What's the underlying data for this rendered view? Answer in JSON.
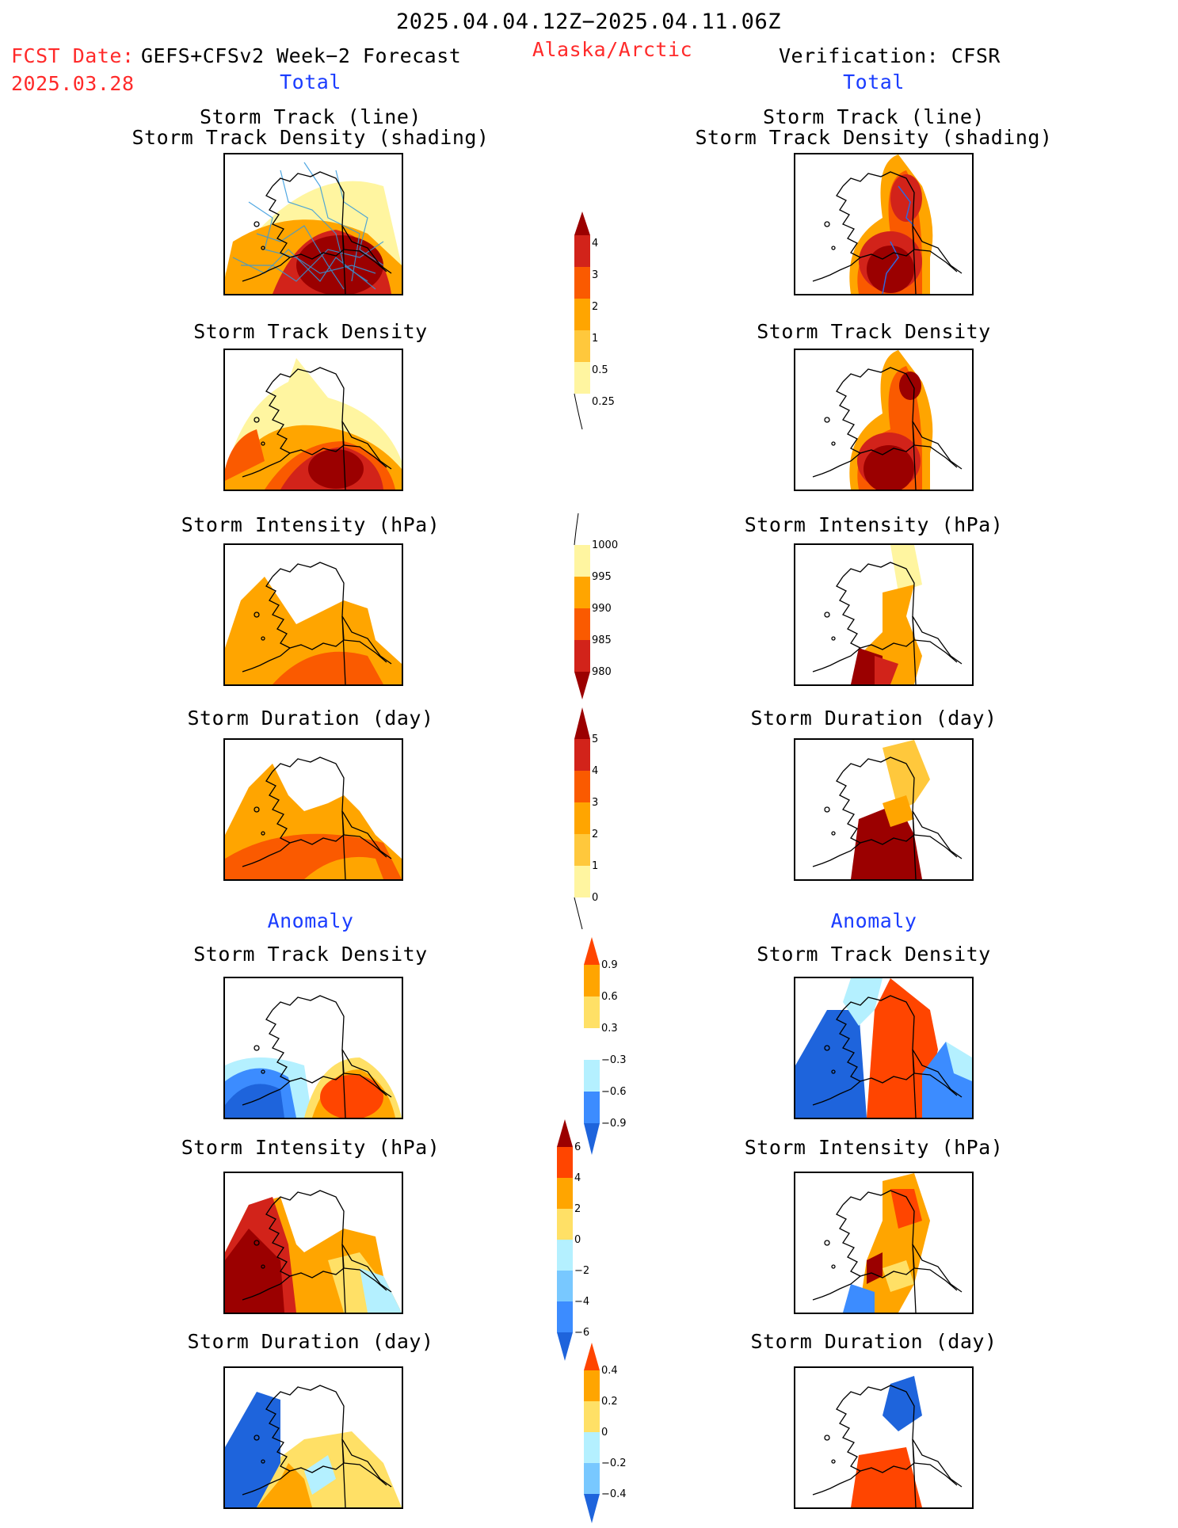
{
  "header": {
    "period": "2025.04.04.12Z−2025.04.11.06Z",
    "fcst_label": "FCST Date:",
    "fcst_model": "GEFS+CFSv2 Week−2 Forecast",
    "fcst_date": "2025.03.28",
    "region": "Alaska/Arctic",
    "verification": "Verification: CFSR"
  },
  "sections": {
    "total": "Total",
    "anomaly": "Anomaly"
  },
  "panel_titles": {
    "track_line": "Storm Track (line)",
    "track_density_shading": "Storm Track Density (shading)",
    "track_density": "Storm Track Density",
    "intensity": "Storm Intensity (hPa)",
    "duration": "Storm Duration (day)"
  },
  "colorbars": {
    "density_total": {
      "ticks": [
        "4",
        "3",
        "2",
        "1",
        "0.5",
        "0.25"
      ],
      "colors": [
        "#9b0000",
        "#d2231a",
        "#fa5a00",
        "#ffa500",
        "#ffc83c",
        "#fff5a0"
      ]
    },
    "intensity_total": {
      "ticks": [
        "1000",
        "995",
        "990",
        "985",
        "980"
      ],
      "colors": [
        "#fff5a0",
        "#ffa500",
        "#fa5a00",
        "#d2231a",
        "#9b0000"
      ]
    },
    "duration_total": {
      "ticks": [
        "5",
        "4",
        "3",
        "2",
        "1",
        "0"
      ],
      "colors": [
        "#9b0000",
        "#d2231a",
        "#fa5a00",
        "#ffa500",
        "#ffc83c",
        "#fff5a0"
      ]
    },
    "density_anom": {
      "ticks": [
        "0.9",
        "0.6",
        "0.3",
        "−0.3",
        "−0.6",
        "−0.9"
      ],
      "colors": [
        "#ff4500",
        "#ffa500",
        "#ffe066",
        "#ffffff",
        "#b4f0ff",
        "#78c8ff",
        "#3c8cff",
        "#1e64dc"
      ]
    },
    "intensity_anom": {
      "ticks": [
        "6",
        "4",
        "2",
        "0",
        "−2",
        "−4",
        "−6"
      ],
      "colors": [
        "#9b0000",
        "#ff4500",
        "#ffa500",
        "#ffe066",
        "#b4f0ff",
        "#78c8ff",
        "#3c8cff",
        "#1e64dc"
      ]
    },
    "duration_anom": {
      "ticks": [
        "0.4",
        "0.2",
        "0",
        "−0.2",
        "−0.4"
      ],
      "colors": [
        "#ff4500",
        "#ffa500",
        "#ffe066",
        "#b4f0ff",
        "#78c8ff",
        "#1e64dc"
      ]
    }
  },
  "colors": {
    "red_text": "#ff2a2a",
    "blue_text": "#1a3cff"
  }
}
